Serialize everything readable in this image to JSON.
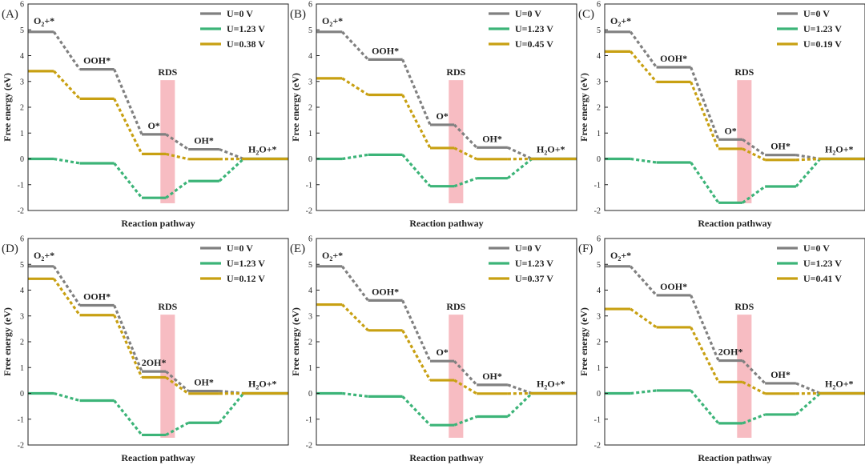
{
  "figure": {
    "rds_label": "RDS",
    "xlabel": "Reaction pathway",
    "ylabel": "Free energy (eV)",
    "ylim": [
      -2,
      6
    ],
    "yticks": [
      "-2",
      "-1",
      "0",
      "1",
      "2",
      "3",
      "4",
      "5",
      "6"
    ],
    "rds_range": [
      3.84,
      4.26
    ],
    "colors": {
      "u0": "#808080",
      "ueq": "#3cb478",
      "ulim": "#c8a012",
      "rds": "#f4a6ae",
      "axis": "#222222"
    }
  },
  "chart_data": [
    {
      "type": "line",
      "panel": "(A)",
      "title": "",
      "xlabel": "Reaction pathway",
      "ylabel": "Free energy (eV)",
      "ylim": [
        -2,
        6
      ],
      "states": [
        {
          "text": "O",
          "sub": "2",
          "tail": "+*"
        },
        {
          "text": "OOH*",
          "sub": "",
          "tail": ""
        },
        {
          "text": "O*",
          "sub": "",
          "tail": ""
        },
        {
          "text": "OH*",
          "sub": "",
          "tail": ""
        },
        {
          "text": "H",
          "sub": "2",
          "tail": "O+*"
        }
      ],
      "series": [
        {
          "name": "U=0 V",
          "values": [
            4.92,
            3.47,
            0.95,
            0.37,
            0.0
          ]
        },
        {
          "name": "U=1.23 V",
          "values": [
            0.0,
            -0.17,
            -1.51,
            -0.86,
            0.0
          ]
        },
        {
          "name": "U=0.38 V",
          "values": [
            3.4,
            2.33,
            0.19,
            -0.01,
            0.0
          ]
        }
      ]
    },
    {
      "type": "line",
      "panel": "(B)",
      "title": "",
      "xlabel": "Reaction pathway",
      "ylabel": "Free energy (eV)",
      "ylim": [
        -2,
        6
      ],
      "states": [
        {
          "text": "O",
          "sub": "2",
          "tail": "+*"
        },
        {
          "text": "OOH*",
          "sub": "",
          "tail": ""
        },
        {
          "text": "O*",
          "sub": "",
          "tail": ""
        },
        {
          "text": "OH*",
          "sub": "",
          "tail": ""
        },
        {
          "text": "H",
          "sub": "2",
          "tail": "O+*"
        }
      ],
      "series": [
        {
          "name": "U=0 V",
          "values": [
            4.92,
            3.85,
            1.32,
            0.44,
            0.0
          ]
        },
        {
          "name": "U=1.23 V",
          "values": [
            0.0,
            0.16,
            -1.06,
            -0.75,
            0.0
          ]
        },
        {
          "name": "U=0.45 V",
          "values": [
            3.12,
            2.48,
            0.42,
            -0.01,
            0.0
          ]
        }
      ]
    },
    {
      "type": "line",
      "panel": "(C)",
      "title": "",
      "xlabel": "Reaction pathway",
      "ylabel": "Free energy (eV)",
      "ylim": [
        -2,
        6
      ],
      "states": [
        {
          "text": "O",
          "sub": "2",
          "tail": "+*"
        },
        {
          "text": "OOH*",
          "sub": "",
          "tail": ""
        },
        {
          "text": "O*",
          "sub": "",
          "tail": ""
        },
        {
          "text": "OH*",
          "sub": "",
          "tail": ""
        },
        {
          "text": "H",
          "sub": "2",
          "tail": "O+*"
        }
      ],
      "series": [
        {
          "name": "U=0 V",
          "values": [
            4.92,
            3.55,
            0.75,
            0.15,
            0.0
          ]
        },
        {
          "name": "U=1.23 V",
          "values": [
            0.0,
            -0.14,
            -1.7,
            -1.07,
            0.0
          ]
        },
        {
          "name": "U=0.19 V",
          "values": [
            4.16,
            2.98,
            0.39,
            -0.04,
            0.0
          ]
        }
      ]
    },
    {
      "type": "line",
      "panel": "(D)",
      "title": "",
      "xlabel": "Reaction pathway",
      "ylabel": "Free energy (eV)",
      "ylim": [
        -2,
        6
      ],
      "states": [
        {
          "text": "O",
          "sub": "2",
          "tail": "+*"
        },
        {
          "text": "OOH*",
          "sub": "",
          "tail": ""
        },
        {
          "text": "2OH*",
          "sub": "",
          "tail": ""
        },
        {
          "text": "OH*",
          "sub": "",
          "tail": ""
        },
        {
          "text": "H",
          "sub": "2",
          "tail": "O+*"
        }
      ],
      "series": [
        {
          "name": "U=0 V",
          "values": [
            4.92,
            3.41,
            0.85,
            0.09,
            0.0
          ]
        },
        {
          "name": "U=1.23 V",
          "values": [
            0.0,
            -0.28,
            -1.61,
            -1.14,
            0.0
          ]
        },
        {
          "name": "U=0.12 V",
          "values": [
            4.44,
            3.03,
            0.62,
            -0.01,
            0.0
          ]
        }
      ]
    },
    {
      "type": "line",
      "panel": "(E)",
      "title": "",
      "xlabel": "Reaction pathway",
      "ylabel": "Free energy (eV)",
      "ylim": [
        -2,
        6
      ],
      "states": [
        {
          "text": "O",
          "sub": "2",
          "tail": "+*"
        },
        {
          "text": "OOH*",
          "sub": "",
          "tail": ""
        },
        {
          "text": "O*",
          "sub": "",
          "tail": ""
        },
        {
          "text": "OH*",
          "sub": "",
          "tail": ""
        },
        {
          "text": "H",
          "sub": "2",
          "tail": "O+*"
        }
      ],
      "series": [
        {
          "name": "U=0 V",
          "values": [
            4.92,
            3.6,
            1.25,
            0.33,
            0.0
          ]
        },
        {
          "name": "U=1.23 V",
          "values": [
            0.0,
            -0.12,
            -1.23,
            -0.9,
            0.0
          ]
        },
        {
          "name": "U=0.37 V",
          "values": [
            3.44,
            2.44,
            0.51,
            -0.01,
            0.0
          ]
        }
      ]
    },
    {
      "type": "line",
      "panel": "(F)",
      "title": "",
      "xlabel": "Reaction pathway",
      "ylabel": "Free energy (eV)",
      "ylim": [
        -2,
        6
      ],
      "states": [
        {
          "text": "O",
          "sub": "2",
          "tail": "+*"
        },
        {
          "text": "OOH*",
          "sub": "",
          "tail": ""
        },
        {
          "text": "2OH*",
          "sub": "",
          "tail": ""
        },
        {
          "text": "OH*",
          "sub": "",
          "tail": ""
        },
        {
          "text": "H",
          "sub": "2",
          "tail": "O+*"
        }
      ],
      "series": [
        {
          "name": "U=0 V",
          "values": [
            4.92,
            3.8,
            1.27,
            0.39,
            0.0
          ]
        },
        {
          "name": "U=1.23 V",
          "values": [
            0.0,
            0.11,
            -1.16,
            -0.82,
            0.0
          ]
        },
        {
          "name": "U=0.41 V",
          "values": [
            3.27,
            2.56,
            0.44,
            -0.01,
            0.0
          ]
        }
      ]
    }
  ]
}
